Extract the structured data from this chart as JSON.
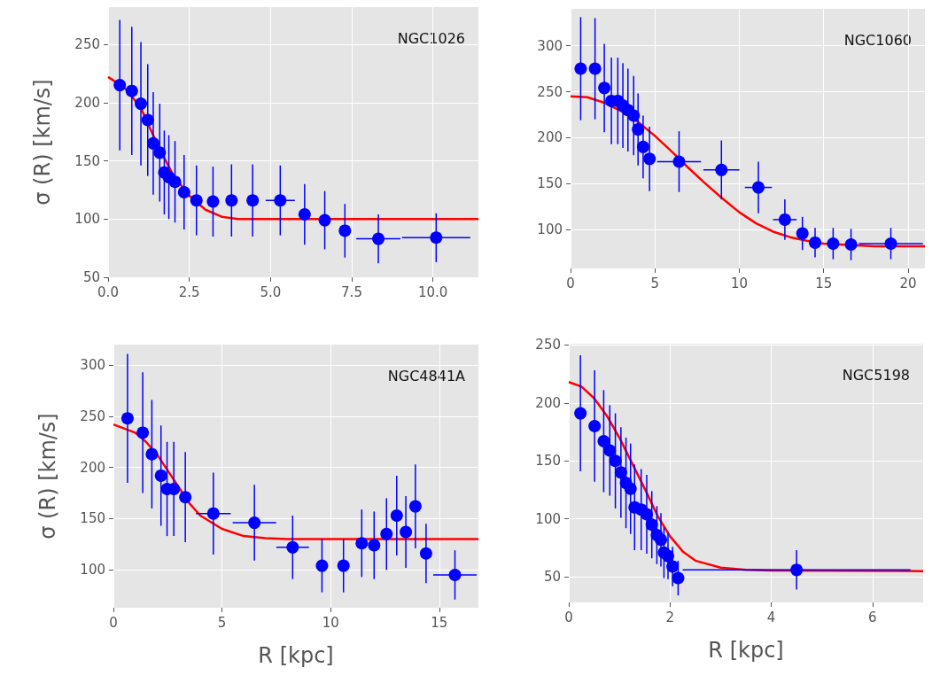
{
  "chart_data": [
    {
      "type": "scatter",
      "annotations": [
        "NGC1026"
      ],
      "ylabel": "σ (R) [km/s]",
      "xlim": [
        0,
        11.4
      ],
      "ylim": [
        50,
        282
      ],
      "xticks": [
        {
          "value": 0,
          "label": "0.0"
        },
        2.5,
        {
          "value": 5,
          "label": "5.0"
        },
        7.5,
        {
          "value": 10,
          "label": "10.0"
        }
      ],
      "yticks": [
        50,
        100,
        150,
        200,
        250
      ],
      "grid": true,
      "series": [
        {
          "type": "scatter",
          "color": "#0000ff",
          "marker": "circle",
          "x": [
            0.36,
            0.73,
            1.01,
            1.22,
            1.39,
            1.59,
            1.73,
            1.87,
            2.06,
            2.34,
            2.72,
            3.23,
            3.8,
            4.45,
            5.3,
            6.05,
            6.67,
            7.29,
            8.32,
            10.1
          ],
          "values": [
            215,
            210,
            199,
            185,
            165,
            157,
            140,
            136,
            132,
            123,
            116,
            115,
            116,
            116,
            116,
            104,
            99,
            90,
            83,
            84
          ],
          "errors": [
            56,
            55,
            53,
            48,
            44,
            42,
            36,
            36,
            35,
            32,
            30,
            30,
            31,
            31,
            30,
            26,
            25,
            23,
            21,
            21
          ],
          "xerrors": [
            null,
            null,
            null,
            null,
            null,
            null,
            null,
            null,
            null,
            null,
            null,
            null,
            null,
            null,
            0.45,
            null,
            null,
            null,
            0.68,
            1.05
          ]
        },
        {
          "type": "line",
          "color": "#ff0000",
          "marker": "none",
          "x": [
            0,
            0.5,
            1,
            1.5,
            2,
            2.5,
            3,
            3.5,
            4,
            5,
            11.4
          ],
          "values": [
            222,
            213,
            196,
            165,
            138,
            120,
            108,
            102,
            100,
            100,
            100
          ]
        }
      ]
    },
    {
      "type": "scatter",
      "annotations": [
        "NGC1060"
      ],
      "xlim": [
        0,
        21
      ],
      "ylim": [
        58,
        340
      ],
      "xticks": [
        0,
        5,
        10,
        15,
        20
      ],
      "yticks": [
        100,
        150,
        200,
        250,
        300
      ],
      "grid": true,
      "series": [
        {
          "type": "scatter",
          "color": "#0000ff",
          "marker": "circle",
          "x": [
            0.6,
            1.45,
            2.0,
            2.42,
            2.8,
            3.1,
            3.4,
            3.74,
            4.0,
            4.3,
            4.68,
            6.43,
            8.94,
            11.13,
            12.7,
            13.74,
            14.49,
            15.56,
            16.62,
            18.98
          ],
          "values": [
            275,
            275,
            254,
            240,
            240,
            235,
            230,
            224,
            209,
            190,
            177,
            174,
            165,
            146,
            111,
            96,
            86,
            85,
            84,
            85
          ],
          "errors": [
            56,
            55,
            48,
            47,
            47,
            46,
            45,
            43,
            39,
            34,
            35,
            33,
            32,
            28,
            22,
            18,
            16,
            17,
            17,
            17
          ],
          "xerrors": [
            null,
            null,
            null,
            null,
            null,
            null,
            null,
            null,
            null,
            null,
            null,
            1.3,
            1.07,
            0.8,
            0.7,
            null,
            null,
            null,
            null,
            1.9
          ]
        },
        {
          "type": "line",
          "color": "#ff0000",
          "marker": "none",
          "x": [
            0,
            1,
            2,
            3,
            4,
            5,
            6,
            7,
            8,
            9,
            10,
            11,
            12,
            13,
            14,
            15,
            16,
            18,
            21
          ],
          "values": [
            245,
            244,
            238,
            229,
            217,
            202,
            185,
            167,
            150,
            134,
            119,
            107,
            98,
            92,
            88,
            85,
            84,
            82,
            82
          ]
        }
      ]
    },
    {
      "type": "scatter",
      "annotations": [
        "NGC4841A"
      ],
      "ylabel": "σ (R) [km/s]",
      "xlabel": "R [kpc]",
      "xlim": [
        0,
        16.8
      ],
      "ylim": [
        63,
        320
      ],
      "xticks": [
        0,
        5,
        10,
        15
      ],
      "yticks": [
        100,
        150,
        200,
        250,
        300
      ],
      "grid": true,
      "series": [
        {
          "type": "scatter",
          "color": "#0000ff",
          "marker": "circle",
          "x": [
            0.65,
            1.35,
            1.77,
            2.19,
            2.47,
            2.78,
            3.31,
            4.6,
            6.49,
            8.25,
            9.6,
            10.59,
            11.43,
            12.0,
            12.57,
            13.04,
            13.46,
            13.9,
            14.39,
            15.72
          ],
          "values": [
            248,
            234,
            213,
            192,
            179,
            179,
            171,
            155,
            146,
            122,
            104,
            104,
            126,
            124,
            135,
            153,
            137,
            162,
            116,
            95
          ],
          "errors": [
            63,
            59,
            53,
            49,
            46,
            46,
            44,
            40,
            37,
            31,
            26,
            26,
            33,
            33,
            35,
            39,
            35,
            41,
            29,
            24
          ],
          "xerrors": [
            null,
            null,
            null,
            null,
            null,
            null,
            null,
            0.8,
            1.0,
            0.75,
            null,
            null,
            null,
            null,
            null,
            null,
            null,
            null,
            null,
            1.0
          ]
        },
        {
          "type": "line",
          "color": "#ff0000",
          "marker": "none",
          "x": [
            0,
            1,
            1.5,
            2,
            3,
            3.5,
            4,
            5,
            6,
            7,
            8,
            16.8
          ],
          "values": [
            242,
            234,
            225,
            213,
            181,
            165,
            153,
            140,
            133,
            131,
            130,
            130
          ]
        }
      ]
    },
    {
      "type": "scatter",
      "annotations": [
        "NGC5198"
      ],
      "xlabel": "R [kpc]",
      "xlim": [
        0,
        7
      ],
      "ylim": [
        28,
        251
      ],
      "xticks": [
        0,
        2,
        4,
        6
      ],
      "yticks": [
        50,
        100,
        150,
        200,
        250
      ],
      "grid": true,
      "series": [
        {
          "type": "scatter",
          "color": "#0000ff",
          "marker": "circle",
          "x": [
            0.23,
            0.51,
            0.69,
            0.81,
            0.92,
            1.03,
            1.13,
            1.22,
            1.3,
            1.43,
            1.54,
            1.64,
            1.74,
            1.82,
            1.88,
            1.96,
            2.05,
            2.16,
            4.5
          ],
          "values": [
            191,
            180,
            167,
            159,
            150,
            140,
            131,
            126,
            110,
            108,
            104,
            95,
            86,
            82,
            71,
            68,
            59,
            49,
            56
          ],
          "errors": [
            50,
            48,
            44,
            39,
            41,
            39,
            39,
            39,
            37,
            35,
            34,
            29,
            25,
            23,
            22,
            20,
            17,
            15,
            17
          ],
          "xerrors": [
            null,
            null,
            null,
            null,
            null,
            null,
            null,
            null,
            null,
            null,
            null,
            null,
            null,
            null,
            null,
            null,
            null,
            null,
            2.25
          ]
        },
        {
          "type": "line",
          "color": "#ff0000",
          "marker": "none",
          "x": [
            0,
            0.25,
            0.5,
            0.75,
            1,
            1.25,
            1.5,
            1.75,
            2,
            2.25,
            2.5,
            3,
            3.5,
            4,
            7
          ],
          "values": [
            218,
            214,
            204,
            189,
            170,
            148,
            126,
            103,
            85,
            72,
            64,
            58,
            56,
            55.5,
            55
          ]
        }
      ]
    }
  ]
}
